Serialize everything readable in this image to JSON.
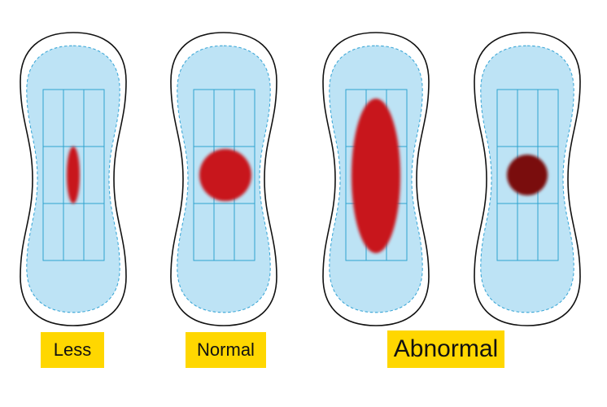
{
  "labels": [
    "Less",
    "Normal",
    "Abnormal"
  ]
}
